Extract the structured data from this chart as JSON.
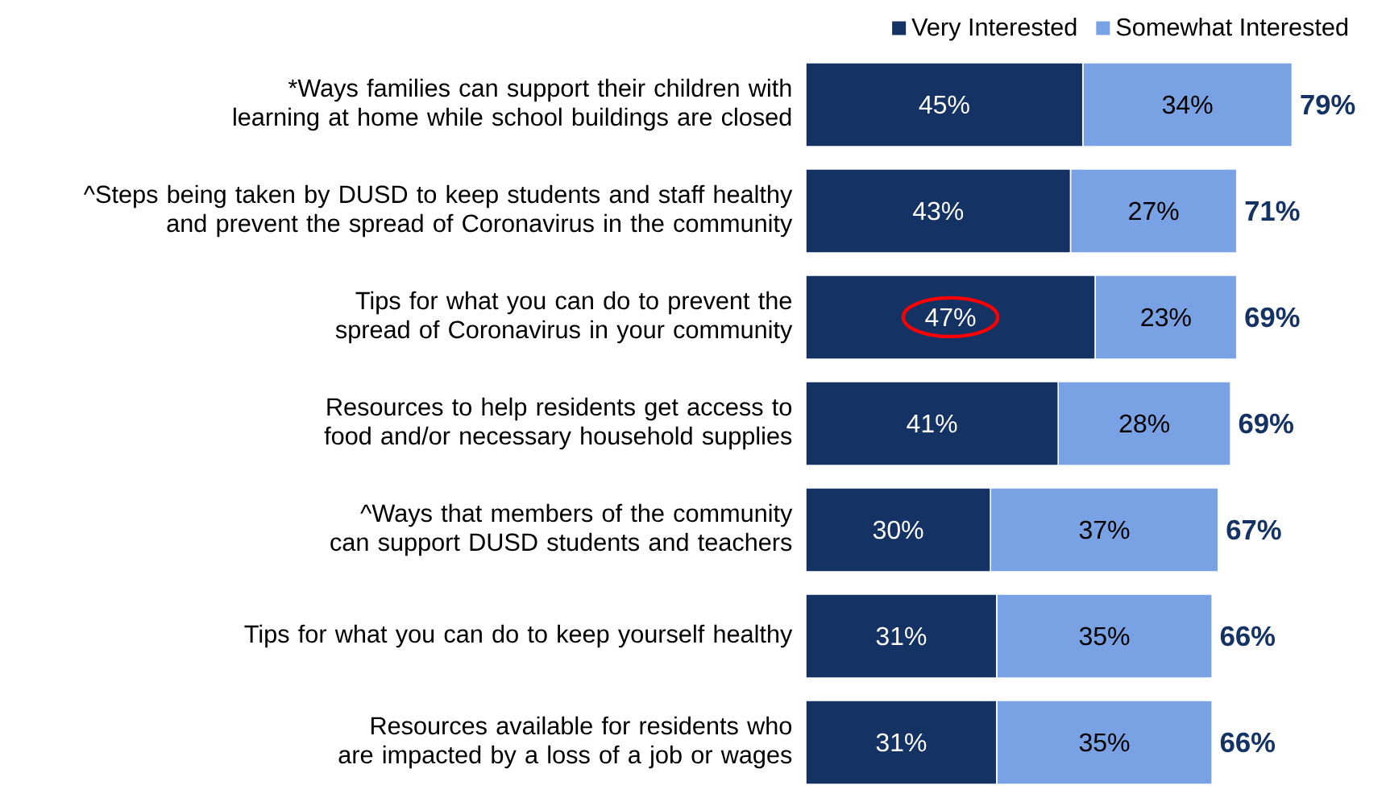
{
  "chart_data": {
    "type": "bar",
    "orientation": "horizontal",
    "stacked": true,
    "legend": "top right",
    "categories": [
      "*Ways families can support their children with learning at home while school buildings are closed",
      "^Steps being taken by DUSD to keep students and staff healthy and prevent the spread of Coronavirus in the community",
      "Tips for what you can do to prevent the spread of Coronavirus in your community",
      "Resources to help residents get access to food and/or necessary household supplies",
      "^Ways that members of the community can support DUSD students and teachers",
      "Tips for what you can do to keep yourself healthy",
      "Resources available for residents who are impacted by a loss of a job or wages"
    ],
    "series": [
      {
        "name": "Very Interested",
        "color": "#143264",
        "values": [
          45,
          43,
          47,
          41,
          30,
          31,
          31
        ],
        "value_labels": [
          "45%",
          "43%",
          "47%",
          "41%",
          "30%",
          "31%",
          "31%"
        ]
      },
      {
        "name": "Somewhat Interested",
        "color": "#78a2e4",
        "values": [
          34,
          27,
          23,
          28,
          37,
          35,
          35
        ],
        "value_labels": [
          "34%",
          "27%",
          "23%",
          "28%",
          "37%",
          "35%",
          "35%"
        ]
      }
    ],
    "totals": [
      "79%",
      "71%",
      "69%",
      "69%",
      "67%",
      "66%",
      "66%"
    ]
  }
}
